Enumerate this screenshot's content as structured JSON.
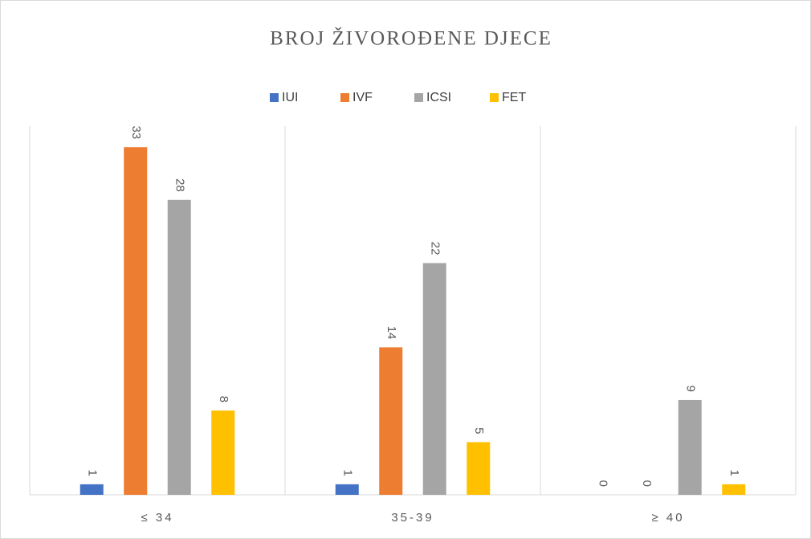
{
  "chart_data": {
    "type": "bar",
    "title": "BROJ ŽIVOROĐENE DJECE",
    "categories": [
      "≤ 34",
      "35-39",
      "≥ 40"
    ],
    "series": [
      {
        "name": "IUI",
        "color": "#4472c4",
        "values": [
          1,
          1,
          0
        ]
      },
      {
        "name": "IVF",
        "color": "#ed7d31",
        "values": [
          33,
          14,
          0
        ]
      },
      {
        "name": "ICSI",
        "color": "#a5a5a5",
        "values": [
          28,
          22,
          9
        ]
      },
      {
        "name": "FET",
        "color": "#ffc000",
        "values": [
          8,
          5,
          1
        ]
      }
    ],
    "ylim": [
      0,
      35
    ],
    "legend": "top"
  }
}
